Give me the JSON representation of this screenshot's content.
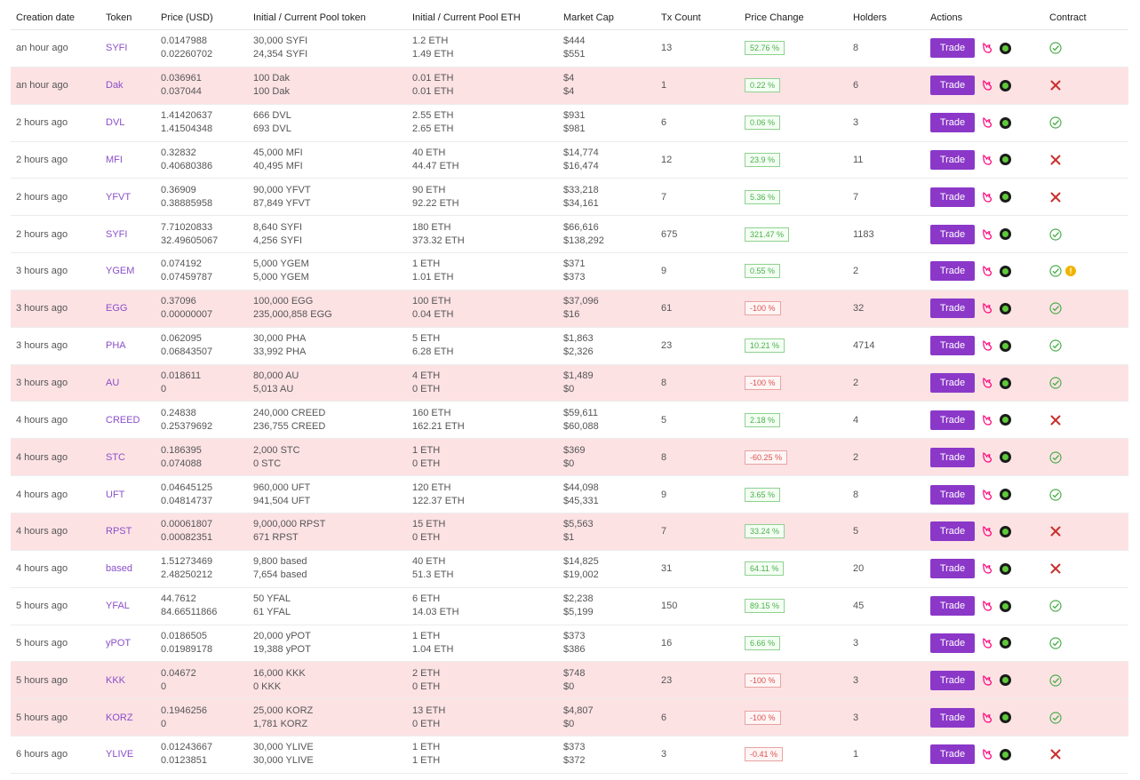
{
  "headers": [
    "Creation date",
    "Token",
    "Price (USD)",
    "Initial / Current Pool token",
    "Initial / Current Pool ETH",
    "Market Cap",
    "Tx Count",
    "Price Change",
    "Holders",
    "Actions",
    "Contract"
  ],
  "trade_label": "Trade",
  "warn_glyph": "!",
  "rows": [
    {
      "date": "an hour ago",
      "token": "SYFI",
      "price1": "0.0147988",
      "price2": "0.02260702",
      "pool1": "30,000 SYFI",
      "pool2": "24,354 SYFI",
      "eth1": "1.2 ETH",
      "eth2": "1.49 ETH",
      "mc1": "$444",
      "mc2": "$551",
      "tx": "13",
      "change": "52.76 %",
      "change_dir": "pos",
      "holders": "8",
      "contract": "ok",
      "warn": false,
      "pink": false
    },
    {
      "date": "an hour ago",
      "token": "Dak",
      "price1": "0.036961",
      "price2": "0.037044",
      "pool1": "100 Dak",
      "pool2": "100 Dak",
      "eth1": "0.01 ETH",
      "eth2": "0.01 ETH",
      "mc1": "$4",
      "mc2": "$4",
      "tx": "1",
      "change": "0.22 %",
      "change_dir": "pos",
      "holders": "6",
      "contract": "bad",
      "warn": false,
      "pink": true
    },
    {
      "date": "2 hours ago",
      "token": "DVL",
      "price1": "1.41420637",
      "price2": "1.41504348",
      "pool1": "666 DVL",
      "pool2": "693 DVL",
      "eth1": "2.55 ETH",
      "eth2": "2.65 ETH",
      "mc1": "$931",
      "mc2": "$981",
      "tx": "6",
      "change": "0.06 %",
      "change_dir": "pos",
      "holders": "3",
      "contract": "ok",
      "warn": false,
      "pink": false
    },
    {
      "date": "2 hours ago",
      "token": "MFI",
      "price1": "0.32832",
      "price2": "0.40680386",
      "pool1": "45,000 MFI",
      "pool2": "40,495 MFI",
      "eth1": "40 ETH",
      "eth2": "44.47 ETH",
      "mc1": "$14,774",
      "mc2": "$16,474",
      "tx": "12",
      "change": "23.9 %",
      "change_dir": "pos",
      "holders": "11",
      "contract": "bad",
      "warn": false,
      "pink": false
    },
    {
      "date": "2 hours ago",
      "token": "YFVT",
      "price1": "0.36909",
      "price2": "0.38885958",
      "pool1": "90,000 YFVT",
      "pool2": "87,849 YFVT",
      "eth1": "90 ETH",
      "eth2": "92.22 ETH",
      "mc1": "$33,218",
      "mc2": "$34,161",
      "tx": "7",
      "change": "5.36 %",
      "change_dir": "pos",
      "holders": "7",
      "contract": "bad",
      "warn": false,
      "pink": false
    },
    {
      "date": "2 hours ago",
      "token": "SYFI",
      "price1": "7.71020833",
      "price2": "32.49605067",
      "pool1": "8,640 SYFI",
      "pool2": "4,256 SYFI",
      "eth1": "180 ETH",
      "eth2": "373.32 ETH",
      "mc1": "$66,616",
      "mc2": "$138,292",
      "tx": "675",
      "change": "321.47 %",
      "change_dir": "pos",
      "holders": "1183",
      "contract": "ok",
      "warn": false,
      "pink": false
    },
    {
      "date": "3 hours ago",
      "token": "YGEM",
      "price1": "0.074192",
      "price2": "0.07459787",
      "pool1": "5,000 YGEM",
      "pool2": "5,000 YGEM",
      "eth1": "1 ETH",
      "eth2": "1.01 ETH",
      "mc1": "$371",
      "mc2": "$373",
      "tx": "9",
      "change": "0.55 %",
      "change_dir": "pos",
      "holders": "2",
      "contract": "ok",
      "warn": true,
      "pink": false
    },
    {
      "date": "3 hours ago",
      "token": "EGG",
      "price1": "0.37096",
      "price2": "0.00000007",
      "pool1": "100,000 EGG",
      "pool2": "235,000,858 EGG",
      "eth1": "100 ETH",
      "eth2": "0.04 ETH",
      "mc1": "$37,096",
      "mc2": "$16",
      "tx": "61",
      "change": "-100 %",
      "change_dir": "neg",
      "holders": "32",
      "contract": "ok",
      "warn": false,
      "pink": true
    },
    {
      "date": "3 hours ago",
      "token": "PHA",
      "price1": "0.062095",
      "price2": "0.06843507",
      "pool1": "30,000 PHA",
      "pool2": "33,992 PHA",
      "eth1": "5 ETH",
      "eth2": "6.28 ETH",
      "mc1": "$1,863",
      "mc2": "$2,326",
      "tx": "23",
      "change": "10.21 %",
      "change_dir": "pos",
      "holders": "4714",
      "contract": "ok",
      "warn": false,
      "pink": false
    },
    {
      "date": "3 hours ago",
      "token": "AU",
      "price1": "0.018611",
      "price2": "0",
      "pool1": "80,000 AU",
      "pool2": "5,013 AU",
      "eth1": "4 ETH",
      "eth2": "0 ETH",
      "mc1": "$1,489",
      "mc2": "$0",
      "tx": "8",
      "change": "-100 %",
      "change_dir": "neg",
      "holders": "2",
      "contract": "ok",
      "warn": false,
      "pink": true
    },
    {
      "date": "4 hours ago",
      "token": "CREED",
      "price1": "0.24838",
      "price2": "0.25379692",
      "pool1": "240,000 CREED",
      "pool2": "236,755 CREED",
      "eth1": "160 ETH",
      "eth2": "162.21 ETH",
      "mc1": "$59,611",
      "mc2": "$60,088",
      "tx": "5",
      "change": "2.18 %",
      "change_dir": "pos",
      "holders": "4",
      "contract": "bad",
      "warn": false,
      "pink": false
    },
    {
      "date": "4 hours ago",
      "token": "STC",
      "price1": "0.186395",
      "price2": "0.074088",
      "pool1": "2,000 STC",
      "pool2": "0 STC",
      "eth1": "1 ETH",
      "eth2": "0 ETH",
      "mc1": "$369",
      "mc2": "$0",
      "tx": "8",
      "change": "-60.25 %",
      "change_dir": "neg",
      "holders": "2",
      "contract": "ok",
      "warn": false,
      "pink": true
    },
    {
      "date": "4 hours ago",
      "token": "UFT",
      "price1": "0.04645125",
      "price2": "0.04814737",
      "pool1": "960,000 UFT",
      "pool2": "941,504 UFT",
      "eth1": "120 ETH",
      "eth2": "122.37 ETH",
      "mc1": "$44,098",
      "mc2": "$45,331",
      "tx": "9",
      "change": "3.65 %",
      "change_dir": "pos",
      "holders": "8",
      "contract": "ok",
      "warn": false,
      "pink": false
    },
    {
      "date": "4 hours ago",
      "token": "RPST",
      "price1": "0.00061807",
      "price2": "0.00082351",
      "pool1": "9,000,000 RPST",
      "pool2": "671 RPST",
      "eth1": "15 ETH",
      "eth2": "0 ETH",
      "mc1": "$5,563",
      "mc2": "$1",
      "tx": "7",
      "change": "33.24 %",
      "change_dir": "pos",
      "holders": "5",
      "contract": "bad",
      "warn": false,
      "pink": true
    },
    {
      "date": "4 hours ago",
      "token": "based",
      "price1": "1.51273469",
      "price2": "2.48250212",
      "pool1": "9,800 based",
      "pool2": "7,654 based",
      "eth1": "40 ETH",
      "eth2": "51.3 ETH",
      "mc1": "$14,825",
      "mc2": "$19,002",
      "tx": "31",
      "change": "64.11 %",
      "change_dir": "pos",
      "holders": "20",
      "contract": "bad",
      "warn": false,
      "pink": false
    },
    {
      "date": "5 hours ago",
      "token": "YFAL",
      "price1": "44.7612",
      "price2": "84.66511866",
      "pool1": "50 YFAL",
      "pool2": "61 YFAL",
      "eth1": "6 ETH",
      "eth2": "14.03 ETH",
      "mc1": "$2,238",
      "mc2": "$5,199",
      "tx": "150",
      "change": "89.15 %",
      "change_dir": "pos",
      "holders": "45",
      "contract": "ok",
      "warn": false,
      "pink": false
    },
    {
      "date": "5 hours ago",
      "token": "yPOT",
      "price1": "0.0186505",
      "price2": "0.01989178",
      "pool1": "20,000 yPOT",
      "pool2": "19,388 yPOT",
      "eth1": "1 ETH",
      "eth2": "1.04 ETH",
      "mc1": "$373",
      "mc2": "$386",
      "tx": "16",
      "change": "6.66 %",
      "change_dir": "pos",
      "holders": "3",
      "contract": "ok",
      "warn": false,
      "pink": false
    },
    {
      "date": "5 hours ago",
      "token": "KKK",
      "price1": "0.04672",
      "price2": "0",
      "pool1": "16,000 KKK",
      "pool2": "0 KKK",
      "eth1": "2 ETH",
      "eth2": "0 ETH",
      "mc1": "$748",
      "mc2": "$0",
      "tx": "23",
      "change": "-100 %",
      "change_dir": "neg",
      "holders": "3",
      "contract": "ok",
      "warn": false,
      "pink": true
    },
    {
      "date": "5 hours ago",
      "token": "KORZ",
      "price1": "0.1946256",
      "price2": "0",
      "pool1": "25,000 KORZ",
      "pool2": "1,781 KORZ",
      "eth1": "13 ETH",
      "eth2": "0 ETH",
      "mc1": "$4,807",
      "mc2": "$0",
      "tx": "6",
      "change": "-100 %",
      "change_dir": "neg",
      "holders": "3",
      "contract": "ok",
      "warn": false,
      "pink": true
    },
    {
      "date": "6 hours ago",
      "token": "YLIVE",
      "price1": "0.01243667",
      "price2": "0.0123851",
      "pool1": "30,000 YLIVE",
      "pool2": "30,000 YLIVE",
      "eth1": "1 ETH",
      "eth2": "1 ETH",
      "mc1": "$373",
      "mc2": "$372",
      "tx": "3",
      "change": "-0.41 %",
      "change_dir": "neg",
      "holders": "1",
      "contract": "bad",
      "warn": false,
      "pink": false
    }
  ],
  "colors": {
    "accent": "#8b38c9",
    "token_link": "#8a4fc9",
    "ok": "#4cae4c",
    "bad": "#c9302c",
    "row_flag": "#fde2e4",
    "uniswap": "#ff007a",
    "warn": "#f0b400"
  },
  "icons": {
    "uniswap": "uniswap-icon",
    "chart": "dextools-icon",
    "ok": "check-circle-icon",
    "bad": "x-mark-icon",
    "warn": "warning-icon"
  }
}
